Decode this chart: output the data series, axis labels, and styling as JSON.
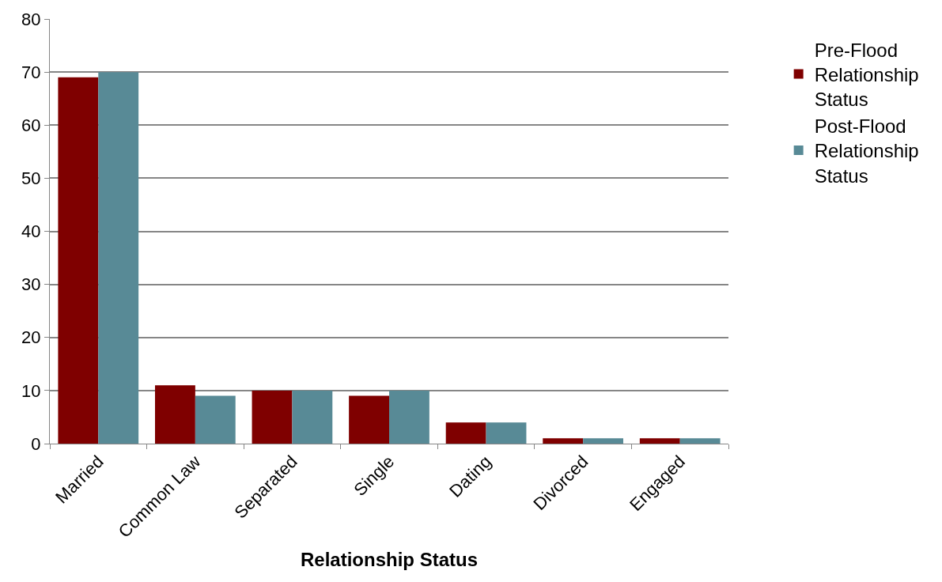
{
  "chart_data": {
    "type": "bar",
    "xlabel": "Relationship Status",
    "categories": [
      "Married",
      "Common Law",
      "Separated",
      "Single",
      "Dating",
      "Divorced",
      "Engaged"
    ],
    "series": [
      {
        "name": "Pre-Flood Relationship Status",
        "color": "#7f0000",
        "values": [
          69,
          11,
          10,
          9,
          4,
          1,
          1
        ]
      },
      {
        "name": "Post-Flood Relationship Status",
        "color": "#588a96",
        "values": [
          70,
          9,
          10,
          10,
          4,
          1,
          1
        ]
      }
    ],
    "ylim": [
      0,
      80
    ],
    "yticks": [
      0,
      10,
      20,
      30,
      40,
      50,
      60,
      70,
      80
    ],
    "grid": "y",
    "legend": "right"
  }
}
